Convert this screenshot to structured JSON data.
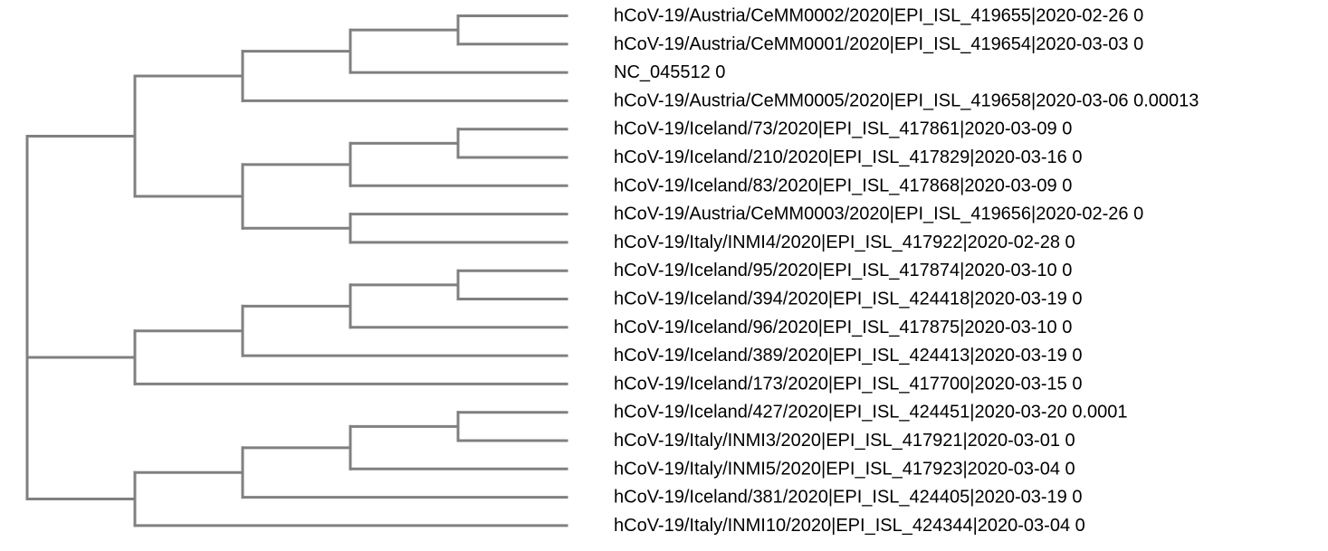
{
  "tree": {
    "leaves": [
      {
        "name": "hCoV-19/Austria/CeMM0002/2020|EPI_ISL_419655|2020-02-26",
        "value": "0"
      },
      {
        "name": "hCoV-19/Austria/CeMM0001/2020|EPI_ISL_419654|2020-03-03",
        "value": "0"
      },
      {
        "name": "NC_045512",
        "value": "0"
      },
      {
        "name": "hCoV-19/Austria/CeMM0005/2020|EPI_ISL_419658|2020-03-06",
        "value": "0.00013"
      },
      {
        "name": "hCoV-19/Iceland/73/2020|EPI_ISL_417861|2020-03-09",
        "value": "0"
      },
      {
        "name": "hCoV-19/Iceland/210/2020|EPI_ISL_417829|2020-03-16",
        "value": "0"
      },
      {
        "name": "hCoV-19/Iceland/83/2020|EPI_ISL_417868|2020-03-09",
        "value": "0"
      },
      {
        "name": "hCoV-19/Austria/CeMM0003/2020|EPI_ISL_419656|2020-02-26",
        "value": "0"
      },
      {
        "name": "hCoV-19/Italy/INMI4/2020|EPI_ISL_417922|2020-02-28",
        "value": "0"
      },
      {
        "name": "hCoV-19/Iceland/95/2020|EPI_ISL_417874|2020-03-10",
        "value": "0"
      },
      {
        "name": "hCoV-19/Iceland/394/2020|EPI_ISL_424418|2020-03-19",
        "value": "0"
      },
      {
        "name": "hCoV-19/Iceland/96/2020|EPI_ISL_417875|2020-03-10",
        "value": "0"
      },
      {
        "name": "hCoV-19/Iceland/389/2020|EPI_ISL_424413|2020-03-19",
        "value": "0"
      },
      {
        "name": "hCoV-19/Iceland/173/2020|EPI_ISL_417700|2020-03-15",
        "value": "0"
      },
      {
        "name": "hCoV-19/Iceland/427/2020|EPI_ISL_424451|2020-03-20",
        "value": "0.0001"
      },
      {
        "name": "hCoV-19/Italy/INMI3/2020|EPI_ISL_417921|2020-03-01",
        "value": "0"
      },
      {
        "name": "hCoV-19/Italy/INMI5/2020|EPI_ISL_417923|2020-03-04",
        "value": "0"
      },
      {
        "name": "hCoV-19/Iceland/381/2020|EPI_ISL_424405|2020-03-19",
        "value": "0"
      },
      {
        "name": "hCoV-19/Italy/INMI10/2020|EPI_ISL_424344|2020-03-04",
        "value": "0"
      }
    ],
    "branch_color": "#808080",
    "label_color": "#000000",
    "topology": [
      [
        [
          [
            [
              0,
              1
            ],
            2
          ],
          3
        ],
        [
          [
            [
              4,
              5
            ],
            6
          ],
          [
            7,
            8
          ]
        ]
      ],
      [
        [
          [
            [
              9,
              10
            ],
            11
          ],
          12
        ],
        13
      ],
      [
        [
          [
            [
              14,
              15
            ],
            16
          ],
          17
        ],
        18
      ]
    ]
  }
}
